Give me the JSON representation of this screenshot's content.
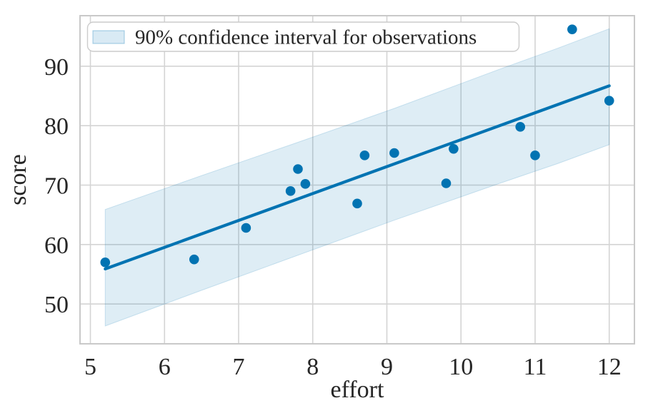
{
  "chart_data": {
    "type": "scatter",
    "title": "",
    "xlabel": "effort",
    "ylabel": "score",
    "xlim": [
      4.86,
      12.34
    ],
    "ylim": [
      43.3,
      98.5
    ],
    "xticks": [
      5,
      6,
      7,
      8,
      9,
      10,
      11,
      12
    ],
    "yticks": [
      50,
      60,
      70,
      80,
      90
    ],
    "grid": true,
    "legend": {
      "label": "90% confidence interval for observations",
      "position": "upper left",
      "swatch": "confidence-band"
    },
    "series": [
      {
        "name": "observations",
        "type": "scatter",
        "points": [
          [
            5.2,
            57.0
          ],
          [
            6.4,
            57.5
          ],
          [
            7.1,
            62.8
          ],
          [
            7.7,
            69.0
          ],
          [
            7.8,
            72.7
          ],
          [
            7.9,
            70.2
          ],
          [
            8.6,
            66.9
          ],
          [
            8.7,
            75.0
          ],
          [
            9.1,
            75.4
          ],
          [
            9.8,
            70.3
          ],
          [
            9.9,
            76.1
          ],
          [
            10.8,
            79.8
          ],
          [
            11.0,
            75.0
          ],
          [
            11.5,
            96.2
          ],
          [
            12.0,
            84.2
          ]
        ]
      },
      {
        "name": "regression-line",
        "type": "line",
        "points": [
          [
            5.2,
            55.9
          ],
          [
            12.0,
            86.7
          ]
        ]
      },
      {
        "name": "confidence-band-90pct",
        "type": "band",
        "x": [
          5.2,
          6.5,
          7.8,
          9.1,
          10.5,
          11.3,
          12.0
        ],
        "lower": [
          46.3,
          52.3,
          58.2,
          64.1,
          70.2,
          73.6,
          76.8
        ],
        "upper": [
          65.9,
          71.6,
          77.2,
          82.9,
          89.4,
          93.0,
          96.3
        ]
      }
    ],
    "colors": {
      "accent_blue": "#0173b2",
      "band_fill_rgba": "1,115,178,0.13",
      "band_edge_rgba": "1,115,178,0.18",
      "grid": "#d4d4d4",
      "frame": "#c9c9c9",
      "text": "#262626",
      "legend_border": "#cccccc",
      "background": "#ffffff"
    }
  }
}
